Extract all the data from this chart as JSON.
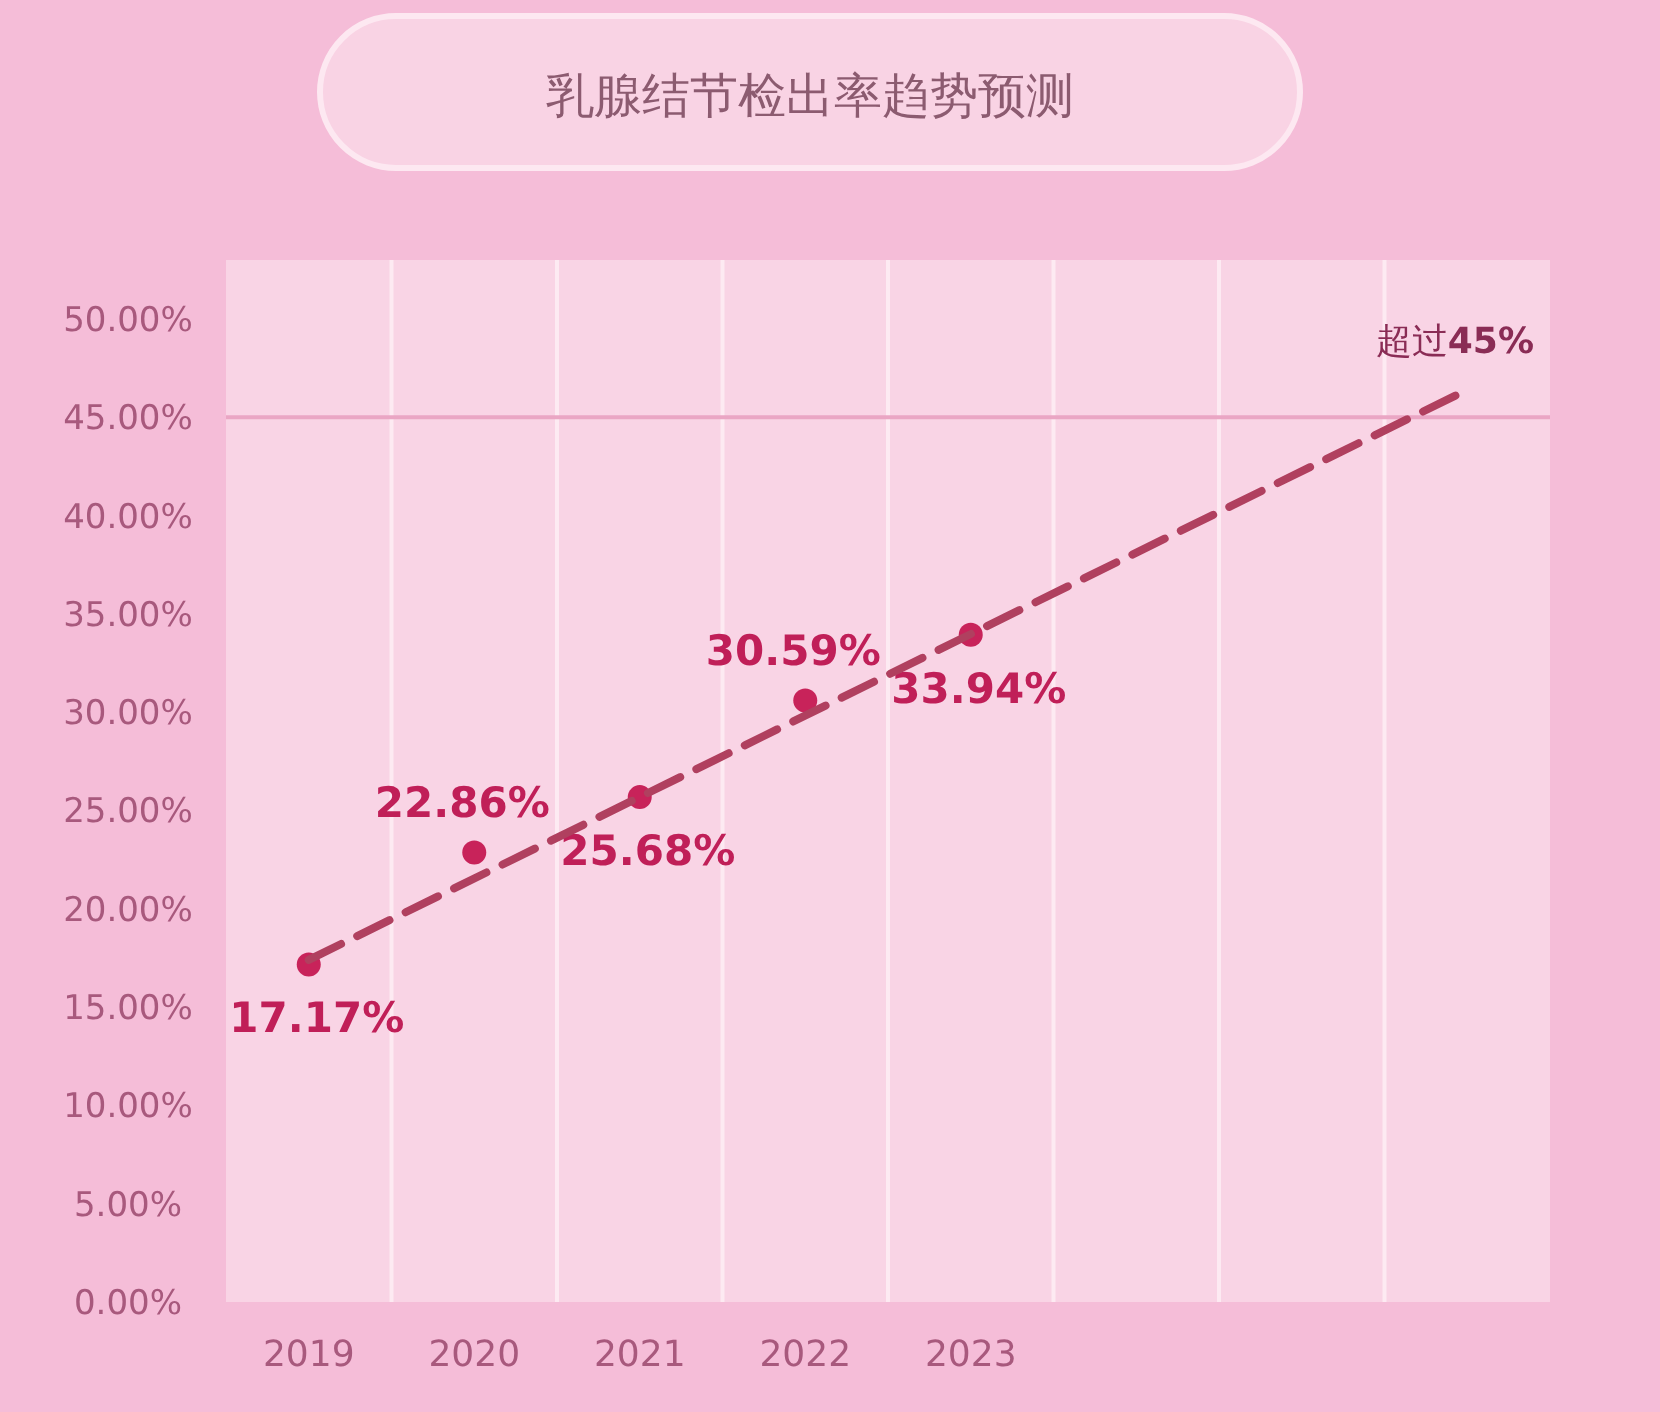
{
  "chart_data": {
    "type": "scatter",
    "title": "乳腺结节检出率趋势预测",
    "categories": [
      "2019",
      "2020",
      "2021",
      "2022",
      "2023",
      null,
      null,
      null
    ],
    "series": [
      {
        "color": "#c8235a",
        "marker": "circle",
        "values": [
          17.17,
          22.86,
          25.68,
          30.59,
          33.94,
          null,
          null,
          null
        ],
        "value_labels": [
          "17.17%",
          "22.86%",
          "25.68%",
          "30.59%",
          "33.94%",
          null,
          null,
          null
        ]
      },
      {
        "type": "line",
        "color": "#b0405f",
        "line_style": "dashed",
        "marker": "none",
        "values": [
          17.4,
          null,
          null,
          null,
          null,
          null,
          null,
          46.4
        ]
      }
    ],
    "ylim": [
      0,
      53
    ],
    "yticks": [
      {
        "value": 0,
        "label": "0.00%"
      },
      {
        "value": 5,
        "label": "5.00%"
      },
      {
        "value": 10,
        "label": "10.00%"
      },
      {
        "value": 15,
        "label": "15.00%"
      },
      {
        "value": 20,
        "label": "20.00%"
      },
      {
        "value": 25,
        "label": "25.00%"
      },
      {
        "value": 30,
        "label": "30.00%"
      },
      {
        "value": 35,
        "label": "35.00%"
      },
      {
        "value": 40,
        "label": "40.00%"
      },
      {
        "value": 45,
        "label": "45.00%"
      },
      {
        "value": 50,
        "label": "50.00%"
      }
    ],
    "ref_lines": [
      {
        "axis": "y",
        "value": 45,
        "label": "超过**45%**",
        "color": "#eaa6c4"
      }
    ],
    "grid": "x"
  }
}
